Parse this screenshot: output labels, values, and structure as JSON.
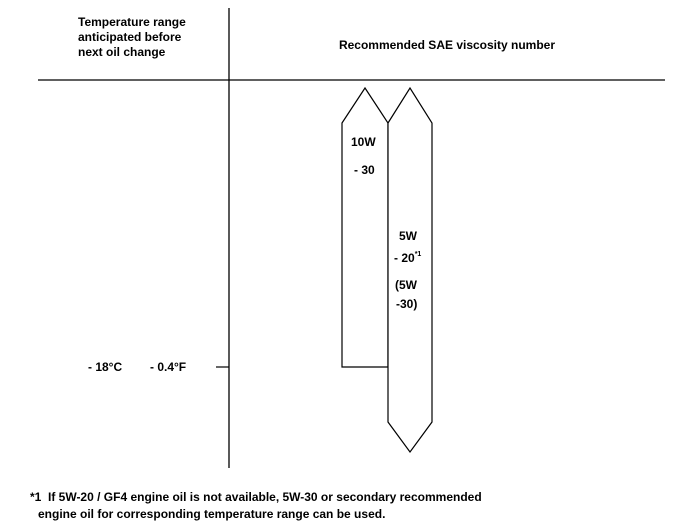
{
  "header": {
    "temperature_column": [
      "Temperature range",
      "anticipated before",
      "next oil change"
    ],
    "viscosity_column": "Recommended SAE viscosity number"
  },
  "temperature_marks": [
    {
      "celsius": "- 18°C",
      "fahrenheit": "- 0.4°F"
    }
  ],
  "grades": [
    {
      "line1": "10W",
      "line2": "- 30"
    },
    {
      "line1": "5W",
      "line2": "- 20",
      "note_ref": "*1",
      "alt1": "(5W",
      "alt2": "-30)"
    }
  ],
  "footnote": {
    "marker": "*1",
    "line1": "If 5W-20 / GF4 engine oil is not available, 5W-30 or secondary recommended",
    "line2": "engine oil for corresponding temperature range can be used."
  }
}
